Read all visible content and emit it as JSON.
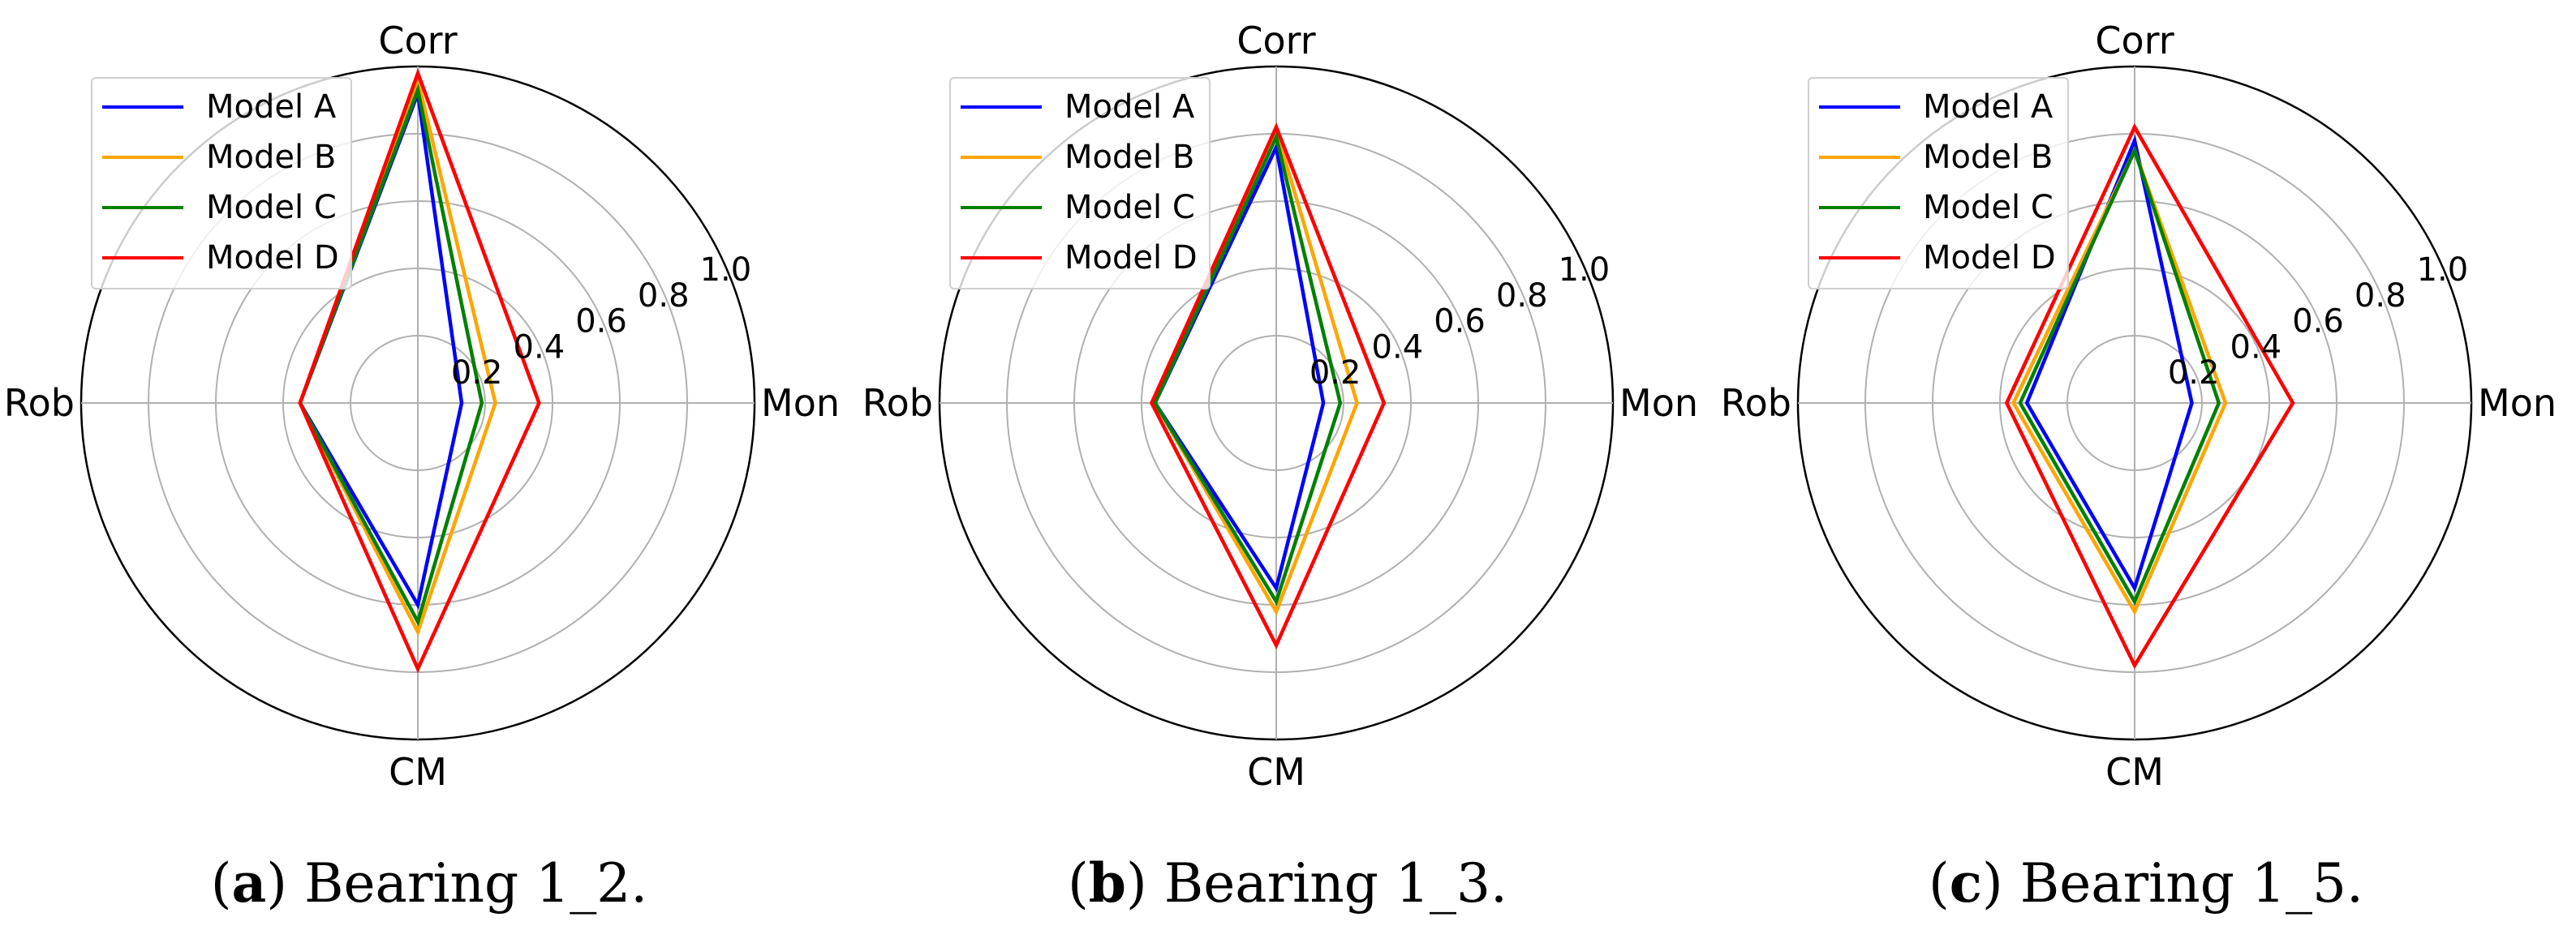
{
  "chart_data": [
    {
      "type": "radar",
      "caption_letter": "a",
      "caption_text": "Bearing 1_2.",
      "axes": [
        "Corr",
        "Mon",
        "CM",
        "Rob"
      ],
      "rlim": [
        0,
        1.0
      ],
      "ticks": [
        "0.2",
        "0.4",
        "0.6",
        "0.8",
        "1.0"
      ],
      "grid": true,
      "legend_position": "top-left",
      "series": [
        {
          "name": "Model A",
          "color": "#0000ff",
          "values": [
            0.92,
            0.13,
            0.6,
            0.35
          ]
        },
        {
          "name": "Model B",
          "color": "#ffa500",
          "values": [
            0.96,
            0.23,
            0.68,
            0.35
          ]
        },
        {
          "name": "Model C",
          "color": "#008000",
          "values": [
            0.93,
            0.19,
            0.65,
            0.35
          ]
        },
        {
          "name": "Model D",
          "color": "#ff0000",
          "values": [
            0.98,
            0.36,
            0.79,
            0.35
          ]
        }
      ]
    },
    {
      "type": "radar",
      "caption_letter": "b",
      "caption_text": "Bearing 1_3.",
      "axes": [
        "Corr",
        "Mon",
        "CM",
        "Rob"
      ],
      "rlim": [
        0,
        1.0
      ],
      "ticks": [
        "0.2",
        "0.4",
        "0.6",
        "0.8",
        "1.0"
      ],
      "grid": true,
      "legend_position": "top-left",
      "series": [
        {
          "name": "Model A",
          "color": "#0000ff",
          "values": [
            0.76,
            0.14,
            0.55,
            0.36
          ]
        },
        {
          "name": "Model B",
          "color": "#ffa500",
          "values": [
            0.81,
            0.24,
            0.62,
            0.36
          ]
        },
        {
          "name": "Model C",
          "color": "#008000",
          "values": [
            0.79,
            0.19,
            0.59,
            0.36
          ]
        },
        {
          "name": "Model D",
          "color": "#ff0000",
          "values": [
            0.82,
            0.32,
            0.72,
            0.37
          ]
        }
      ]
    },
    {
      "type": "radar",
      "caption_letter": "c",
      "caption_text": "Bearing 1_5.",
      "axes": [
        "Corr",
        "Mon",
        "CM",
        "Rob"
      ],
      "rlim": [
        0,
        1.0
      ],
      "ticks": [
        "0.2",
        "0.4",
        "0.6",
        "0.8",
        "1.0"
      ],
      "grid": true,
      "legend_position": "top-left",
      "series": [
        {
          "name": "Model A",
          "color": "#0000ff",
          "values": [
            0.78,
            0.17,
            0.55,
            0.32
          ]
        },
        {
          "name": "Model B",
          "color": "#ffa500",
          "values": [
            0.75,
            0.27,
            0.62,
            0.36
          ]
        },
        {
          "name": "Model C",
          "color": "#008000",
          "values": [
            0.75,
            0.25,
            0.59,
            0.34
          ]
        },
        {
          "name": "Model D",
          "color": "#ff0000",
          "values": [
            0.82,
            0.47,
            0.78,
            0.38
          ]
        }
      ]
    }
  ]
}
